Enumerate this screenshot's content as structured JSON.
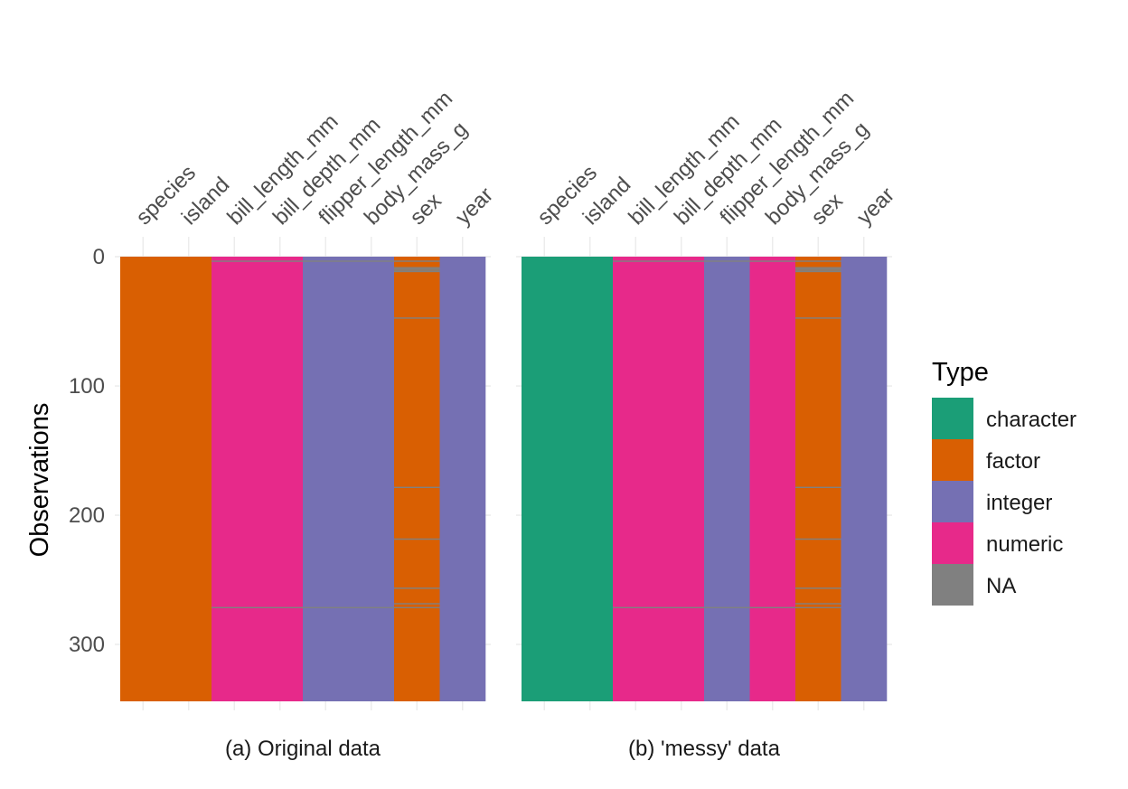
{
  "chart_data": {
    "type": "heatmap",
    "ylabel": "Observations",
    "ylim": [
      0,
      344
    ],
    "y_ticks": [
      0,
      100,
      200,
      300
    ],
    "y_tick_labels": [
      "0",
      "100",
      "200",
      "300"
    ],
    "grid": true,
    "legend": {
      "title": "Type",
      "placement": "right",
      "entries": [
        {
          "label": "character",
          "color": "#1B9E77"
        },
        {
          "label": "factor",
          "color": "#D95F02"
        },
        {
          "label": "integer",
          "color": "#7570B3"
        },
        {
          "label": "numeric",
          "color": "#E7298A"
        },
        {
          "label": "NA",
          "color": "#808080"
        }
      ]
    },
    "panels": [
      {
        "subtitle": "(a) Original data",
        "columns": [
          {
            "name": "species",
            "type": "factor",
            "na_rows": []
          },
          {
            "name": "island",
            "type": "factor",
            "na_rows": []
          },
          {
            "name": "bill_length_mm",
            "type": "numeric",
            "na_rows": [
              4,
              272
            ]
          },
          {
            "name": "bill_depth_mm",
            "type": "numeric",
            "na_rows": [
              4,
              272
            ]
          },
          {
            "name": "flipper_length_mm",
            "type": "integer",
            "na_rows": [
              4,
              272
            ]
          },
          {
            "name": "body_mass_g",
            "type": "integer",
            "na_rows": [
              4,
              272
            ]
          },
          {
            "name": "sex",
            "type": "factor",
            "na_rows": [
              4,
              9,
              10,
              11,
              12,
              48,
              179,
              219,
              257,
              269,
              272
            ]
          },
          {
            "name": "year",
            "type": "integer",
            "na_rows": []
          }
        ]
      },
      {
        "subtitle": "(b) 'messy' data",
        "columns": [
          {
            "name": "species",
            "type": "character",
            "na_rows": []
          },
          {
            "name": "island",
            "type": "character",
            "na_rows": []
          },
          {
            "name": "bill_length_mm",
            "type": "numeric",
            "na_rows": [
              4,
              272
            ]
          },
          {
            "name": "bill_depth_mm",
            "type": "numeric",
            "na_rows": [
              4,
              272
            ]
          },
          {
            "name": "flipper_length_mm",
            "type": "integer",
            "na_rows": [
              4,
              272
            ]
          },
          {
            "name": "body_mass_g",
            "type": "numeric",
            "na_rows": [
              4,
              272
            ]
          },
          {
            "name": "sex",
            "type": "factor",
            "na_rows": [
              4,
              9,
              10,
              11,
              12,
              48,
              179,
              219,
              257,
              269,
              272
            ]
          },
          {
            "name": "year",
            "type": "integer",
            "na_rows": []
          }
        ]
      }
    ]
  }
}
